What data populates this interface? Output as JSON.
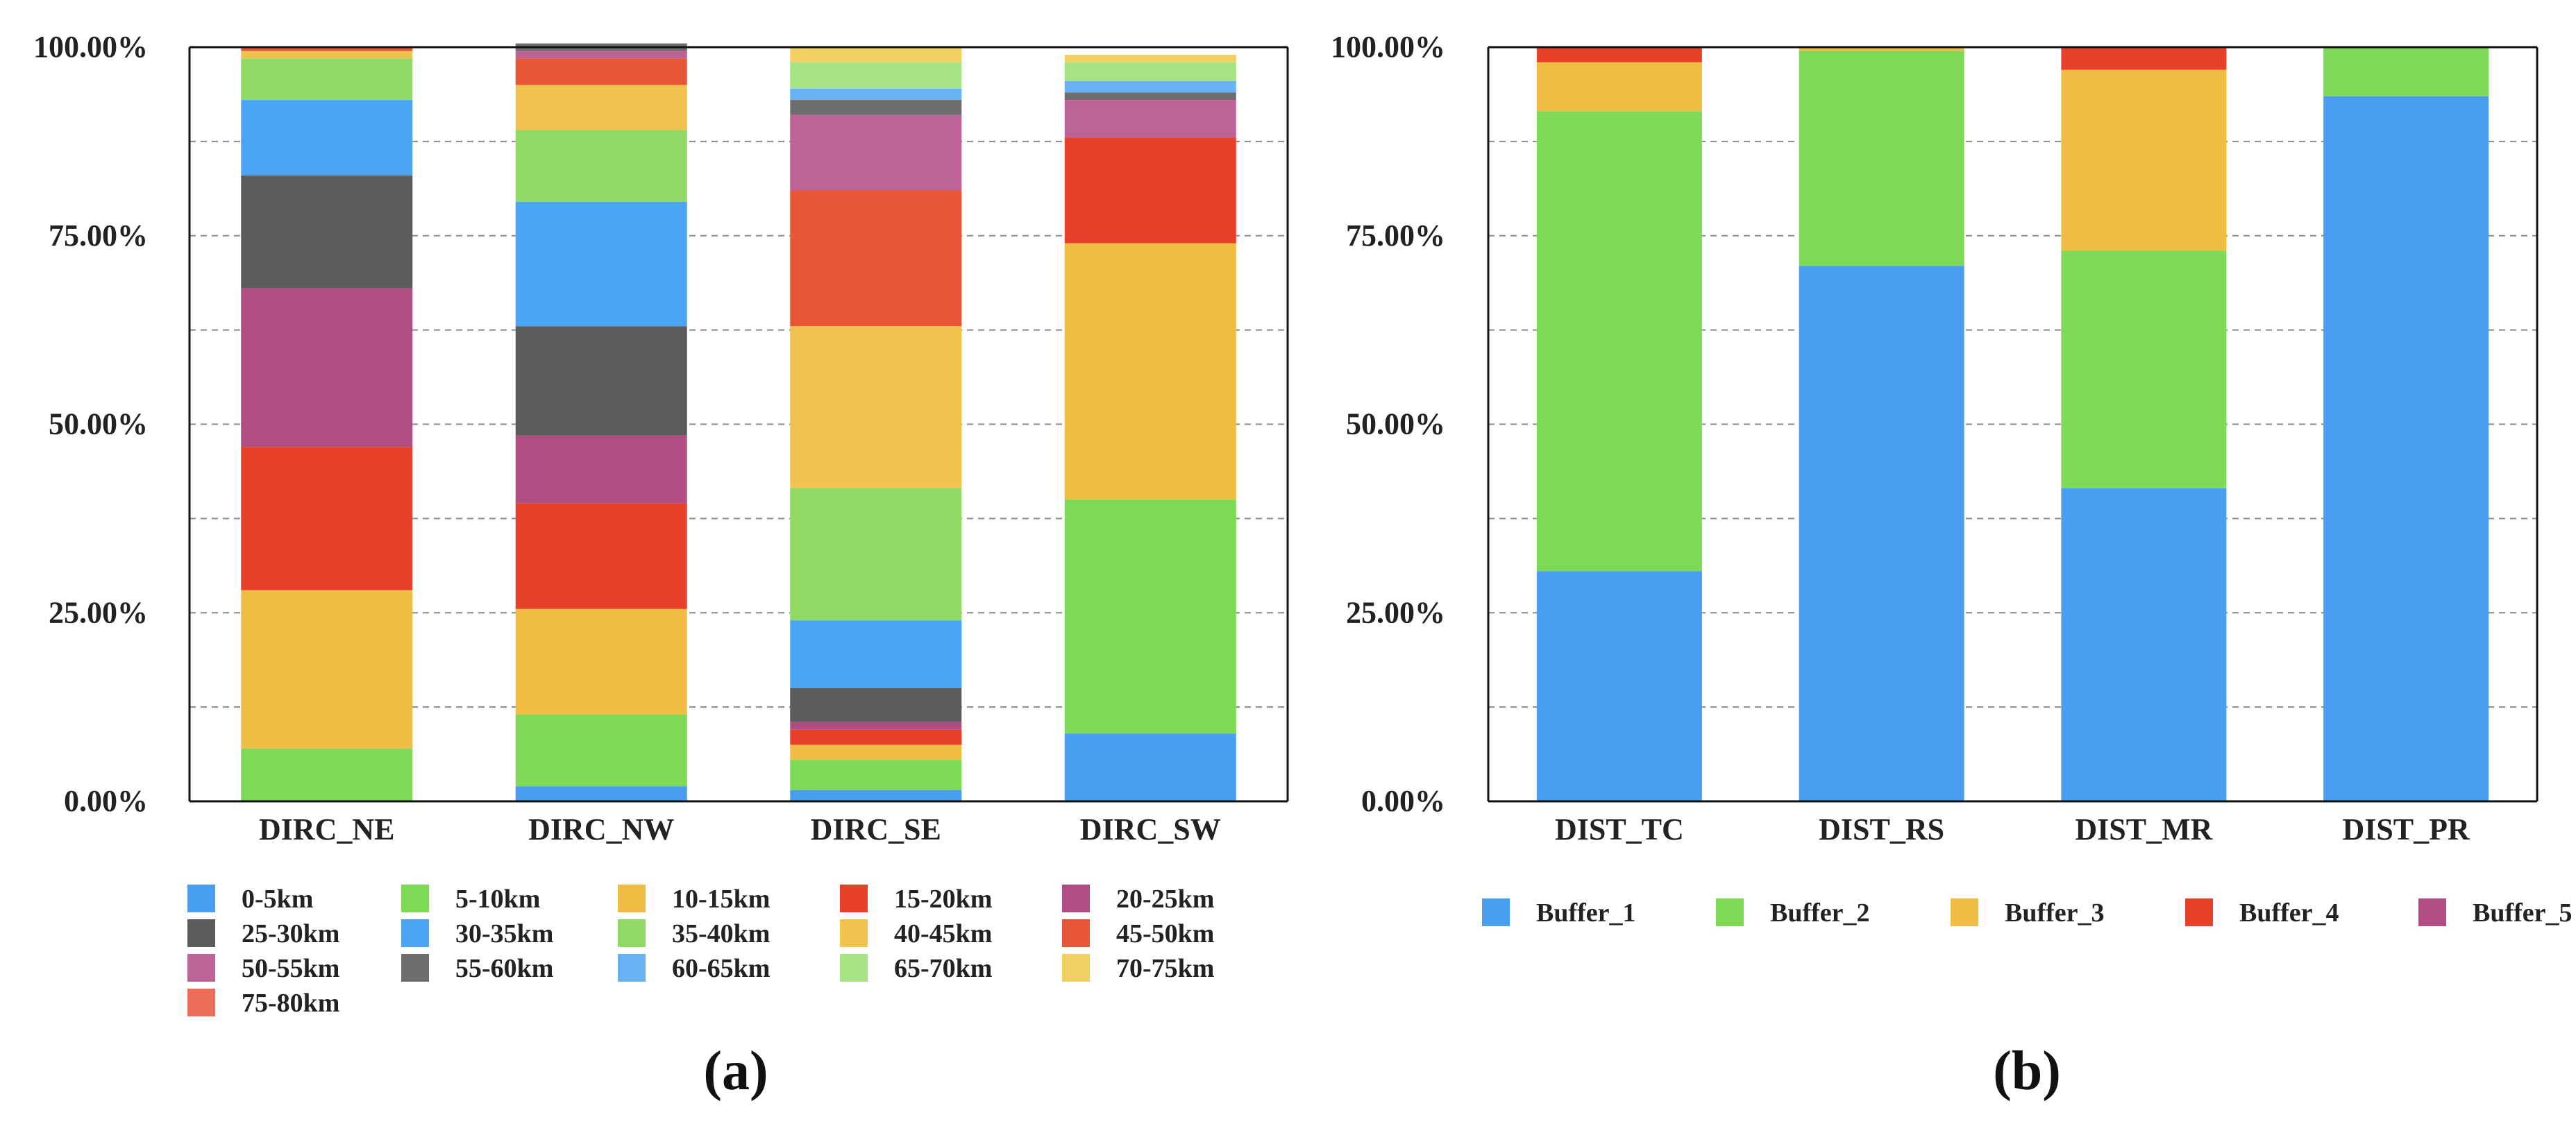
{
  "chart_data": [
    {
      "type": "bar",
      "stacked": true,
      "caption": "(a)",
      "categories": [
        "DIRC_NE",
        "DIRC_NW",
        "DIRC_SE",
        "DIRC_SW"
      ],
      "y_tick_labels": [
        "0.00%",
        "25.00%",
        "50.00%",
        "75.00%",
        "100.00%"
      ],
      "ylim": [
        0,
        100
      ],
      "grid": true,
      "legend_position": "bottom",
      "series": [
        {
          "name": "0-5km",
          "color": "#4A9EF0",
          "values": [
            0,
            2,
            1.5,
            9
          ]
        },
        {
          "name": "5-10km",
          "color": "#7ED957",
          "values": [
            7,
            9.5,
            4,
            31
          ]
        },
        {
          "name": "10-15km",
          "color": "#F0BC43",
          "values": [
            21,
            14,
            2,
            34
          ]
        },
        {
          "name": "15-20km",
          "color": "#E8412B",
          "values": [
            19,
            14,
            2,
            14
          ]
        },
        {
          "name": "20-25km",
          "color": "#B04E84",
          "values": [
            21,
            9,
            1,
            0
          ]
        },
        {
          "name": "25-30km",
          "color": "#5C5C5C",
          "values": [
            15,
            14.5,
            4.5,
            0
          ]
        },
        {
          "name": "30-35km",
          "color": "#4AA6F5",
          "values": [
            10,
            16.5,
            9,
            0
          ]
        },
        {
          "name": "35-40km",
          "color": "#8FD964",
          "values": [
            5.5,
            9.5,
            17.5,
            0
          ]
        },
        {
          "name": "40-45km",
          "color": "#F2C24F",
          "values": [
            1,
            6,
            21.5,
            0
          ]
        },
        {
          "name": "45-50km",
          "color": "#E65637",
          "values": [
            0.5,
            3.5,
            18,
            0
          ]
        },
        {
          "name": "50-55km",
          "color": "#BE6396",
          "values": [
            0,
            1,
            10,
            5
          ]
        },
        {
          "name": "55-60km",
          "color": "#6E6E6E",
          "values": [
            0,
            1,
            2,
            1
          ]
        },
        {
          "name": "60-65km",
          "color": "#66B2F5",
          "values": [
            0,
            0,
            1.5,
            1.5
          ]
        },
        {
          "name": "65-70km",
          "color": "#A6E384",
          "values": [
            0,
            0,
            3.5,
            2.5
          ]
        },
        {
          "name": "70-75km",
          "color": "#F3D062",
          "values": [
            0,
            0,
            2,
            1
          ]
        },
        {
          "name": "75-80km",
          "color": "#EC6E58",
          "values": [
            0,
            0,
            0,
            0
          ]
        }
      ]
    },
    {
      "type": "bar",
      "stacked": true,
      "caption": "(b)",
      "categories": [
        "DIST_TC",
        "DIST_RS",
        "DIST_MR",
        "DIST_PR"
      ],
      "y_tick_labels": [
        "0.00%",
        "25.00%",
        "50.00%",
        "75.00%",
        "100.00%"
      ],
      "ylim": [
        0,
        100
      ],
      "grid": true,
      "legend_position": "bottom",
      "series": [
        {
          "name": "Buffer_1",
          "color": "#4A9EF0",
          "values": [
            30.5,
            71,
            41.5,
            93.5
          ]
        },
        {
          "name": "Buffer_2",
          "color": "#7ED957",
          "values": [
            61,
            28.5,
            31.5,
            6.5
          ]
        },
        {
          "name": "Buffer_3",
          "color": "#F0BC43",
          "values": [
            6.5,
            0.5,
            24,
            0
          ]
        },
        {
          "name": "Buffer_4",
          "color": "#E8412B",
          "values": [
            2,
            0,
            3,
            0
          ]
        },
        {
          "name": "Buffer_5",
          "color": "#B04E84",
          "values": [
            0,
            0,
            0,
            0
          ]
        }
      ]
    }
  ]
}
